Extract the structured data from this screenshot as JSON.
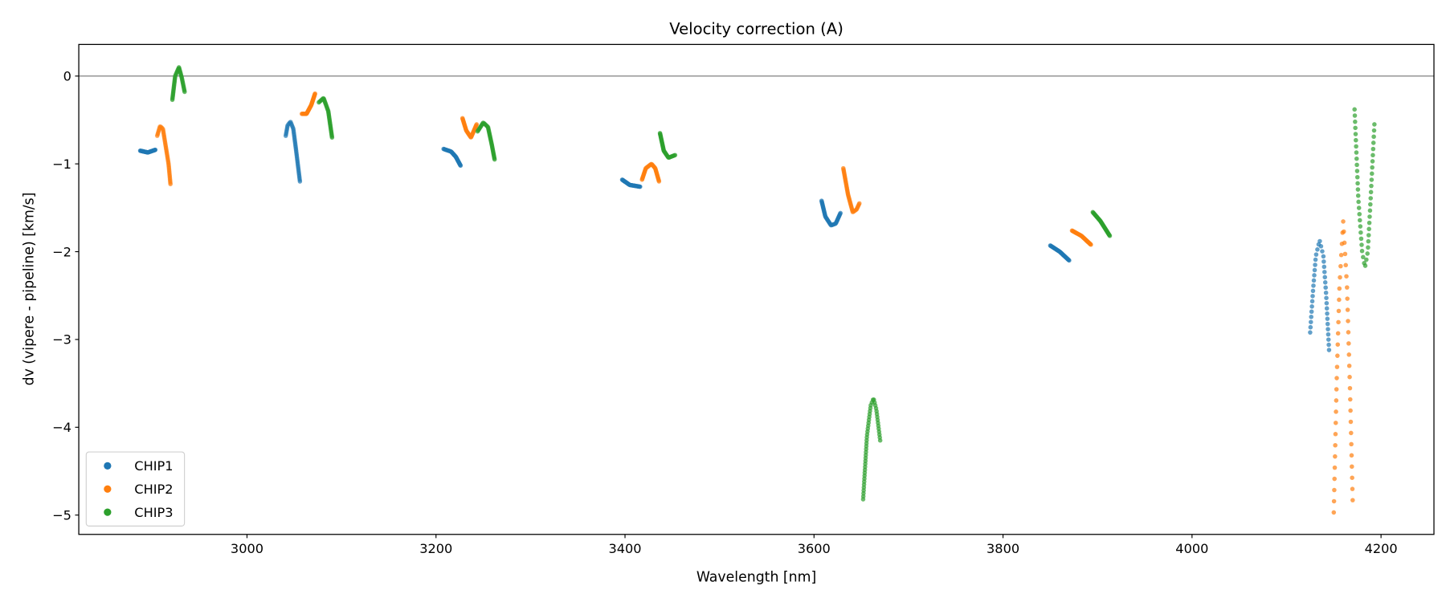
{
  "chart_data": {
    "type": "scatter",
    "title": "Velocity correction (A)",
    "xlabel": "Wavelength [nm]",
    "ylabel": "dv (vipere - pipeline) [km/s]",
    "xlim": [
      2822,
      4256
    ],
    "ylim": [
      -5.22,
      0.36
    ],
    "xticks": [
      3000,
      3200,
      3400,
      3600,
      3800,
      4000,
      4200
    ],
    "xtick_labels": [
      "3000",
      "3200",
      "3400",
      "3600",
      "3800",
      "4000",
      "4200"
    ],
    "yticks": [
      0,
      -1,
      -2,
      -3,
      -4,
      -5
    ],
    "ytick_labels": [
      "0",
      "−1",
      "−2",
      "−3",
      "−4",
      "−5"
    ],
    "hline_y": 0,
    "legend_placement": "lower-left",
    "series": [
      {
        "name": "CHIP1",
        "color": "#1f77b4",
        "segments": [
          {
            "n": 40,
            "pts": [
              [
                2887,
                -0.85
              ],
              [
                2895,
                -0.87
              ],
              [
                2903,
                -0.84
              ]
            ]
          },
          {
            "n": 45,
            "pts": [
              [
                3041,
                -0.68
              ],
              [
                3043,
                -0.56
              ],
              [
                3046,
                -0.52
              ],
              [
                3049,
                -0.6
              ],
              [
                3052,
                -0.85
              ],
              [
                3056,
                -1.2
              ]
            ]
          },
          {
            "n": 40,
            "pts": [
              [
                3208,
                -0.83
              ],
              [
                3216,
                -0.86
              ],
              [
                3221,
                -0.92
              ],
              [
                3226,
                -1.02
              ]
            ]
          },
          {
            "n": 40,
            "pts": [
              [
                3397,
                -1.18
              ],
              [
                3405,
                -1.24
              ],
              [
                3416,
                -1.26
              ]
            ]
          },
          {
            "n": 45,
            "pts": [
              [
                3608,
                -1.42
              ],
              [
                3612,
                -1.6
              ],
              [
                3618,
                -1.7
              ],
              [
                3623,
                -1.68
              ],
              [
                3628,
                -1.56
              ]
            ]
          },
          {
            "n": 40,
            "pts": [
              [
                3850,
                -1.93
              ],
              [
                3860,
                -2.0
              ],
              [
                3870,
                -2.1
              ]
            ]
          },
          {
            "n": 40,
            "pts": [
              [
                4125,
                -2.92
              ],
              [
                4128,
                -2.45
              ],
              [
                4131,
                -2.05
              ],
              [
                4135,
                -1.87
              ],
              [
                4139,
                -2.05
              ],
              [
                4142,
                -2.5
              ],
              [
                4145,
                -3.12
              ]
            ]
          }
        ]
      },
      {
        "name": "CHIP2",
        "color": "#ff7f0e",
        "segments": [
          {
            "n": 45,
            "pts": [
              [
                2905,
                -0.68
              ],
              [
                2908,
                -0.57
              ],
              [
                2911,
                -0.6
              ],
              [
                2914,
                -0.8
              ],
              [
                2917,
                -1.0
              ],
              [
                2919,
                -1.23
              ]
            ]
          },
          {
            "n": 40,
            "pts": [
              [
                3058,
                -0.43
              ],
              [
                3063,
                -0.43
              ],
              [
                3068,
                -0.33
              ],
              [
                3072,
                -0.2
              ]
            ]
          },
          {
            "n": 40,
            "pts": [
              [
                3228,
                -0.48
              ],
              [
                3232,
                -0.62
              ],
              [
                3237,
                -0.7
              ],
              [
                3243,
                -0.55
              ]
            ]
          },
          {
            "n": 40,
            "pts": [
              [
                3418,
                -1.18
              ],
              [
                3422,
                -1.05
              ],
              [
                3428,
                -1.0
              ],
              [
                3432,
                -1.05
              ],
              [
                3436,
                -1.2
              ]
            ]
          },
          {
            "n": 45,
            "pts": [
              [
                3631,
                -1.05
              ],
              [
                3636,
                -1.35
              ],
              [
                3641,
                -1.55
              ],
              [
                3645,
                -1.52
              ],
              [
                3648,
                -1.45
              ]
            ]
          },
          {
            "n": 40,
            "pts": [
              [
                3873,
                -1.76
              ],
              [
                3883,
                -1.82
              ],
              [
                3893,
                -1.92
              ]
            ]
          },
          {
            "n": 52,
            "pts": [
              [
                4150,
                -4.97
              ],
              [
                4153,
                -3.5
              ],
              [
                4156,
                -2.4
              ],
              [
                4160,
                -1.65
              ],
              [
                4164,
                -2.4
              ],
              [
                4167,
                -3.5
              ],
              [
                4170,
                -4.83
              ]
            ]
          }
        ]
      },
      {
        "name": "CHIP3",
        "color": "#2ca02c",
        "segments": [
          {
            "n": 45,
            "pts": [
              [
                2921,
                -0.27
              ],
              [
                2924,
                0.0
              ],
              [
                2928,
                0.1
              ],
              [
                2931,
                -0.02
              ],
              [
                2934,
                -0.18
              ]
            ]
          },
          {
            "n": 40,
            "pts": [
              [
                3076,
                -0.3
              ],
              [
                3081,
                -0.25
              ],
              [
                3086,
                -0.4
              ],
              [
                3090,
                -0.7
              ]
            ]
          },
          {
            "n": 45,
            "pts": [
              [
                3244,
                -0.63
              ],
              [
                3250,
                -0.53
              ],
              [
                3255,
                -0.58
              ],
              [
                3259,
                -0.78
              ],
              [
                3262,
                -0.95
              ]
            ]
          },
          {
            "n": 40,
            "pts": [
              [
                3437,
                -0.65
              ],
              [
                3441,
                -0.85
              ],
              [
                3446,
                -0.93
              ],
              [
                3453,
                -0.9
              ]
            ]
          },
          {
            "n": 50,
            "pts": [
              [
                3652,
                -4.82
              ],
              [
                3656,
                -4.1
              ],
              [
                3660,
                -3.75
              ],
              [
                3663,
                -3.67
              ],
              [
                3666,
                -3.8
              ],
              [
                3670,
                -4.15
              ]
            ]
          },
          {
            "n": 40,
            "pts": [
              [
                3895,
                -1.55
              ],
              [
                3903,
                -1.65
              ],
              [
                3913,
                -1.82
              ]
            ]
          },
          {
            "n": 50,
            "pts": [
              [
                4172,
                -0.38
              ],
              [
                4176,
                -1.4
              ],
              [
                4180,
                -2.0
              ],
              [
                4183,
                -2.18
              ],
              [
                4186,
                -2.0
              ],
              [
                4189,
                -1.4
              ],
              [
                4193,
                -0.55
              ]
            ]
          }
        ]
      }
    ]
  }
}
